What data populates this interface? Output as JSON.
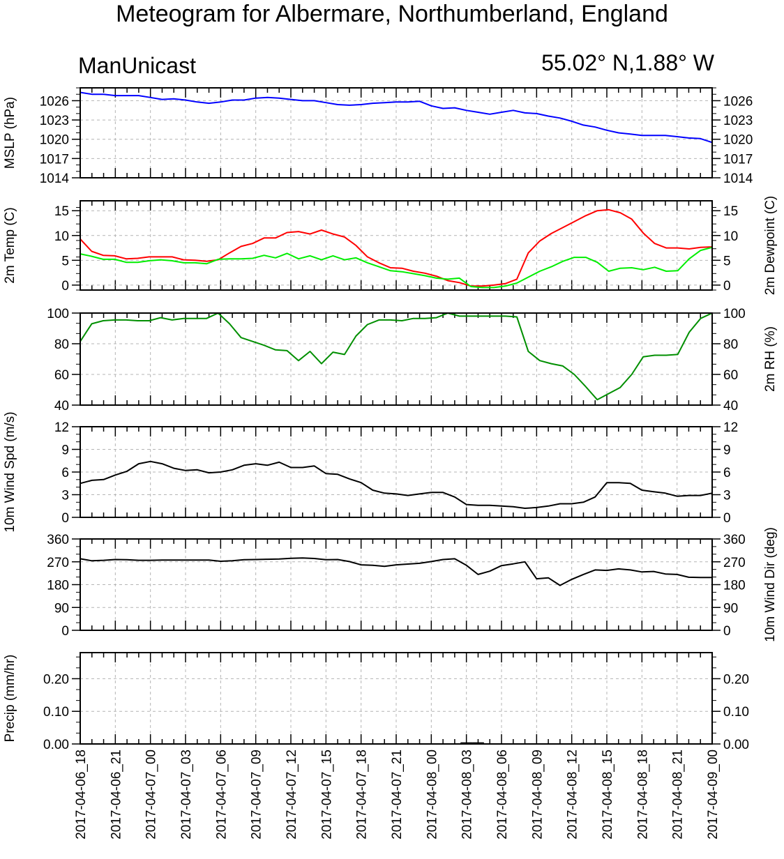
{
  "header": {
    "title": "Meteogram for Albermare, Northumberland, England",
    "model": "ManUnicast",
    "coordinates": "55.02° N,1.88° W"
  },
  "chart_data": [
    {
      "type": "line",
      "ylabel": "MSLP (hPa)",
      "ylabel_right": "",
      "ylim": [
        1014,
        1028
      ],
      "yticks": [
        1014,
        1017,
        1020,
        1023,
        1026
      ],
      "ytick_labels": [
        "1014",
        "1017",
        "1020",
        "1023",
        "1026"
      ],
      "series": [
        {
          "color": "#0000ff",
          "values": [
            1027.3,
            1027.0,
            1027.0,
            1026.8,
            1026.8,
            1026.8,
            1026.5,
            1026.2,
            1026.3,
            1026.1,
            1025.8,
            1025.6,
            1025.8,
            1026.1,
            1026.1,
            1026.4,
            1026.5,
            1026.4,
            1026.2,
            1026.0,
            1026.0,
            1025.7,
            1025.4,
            1025.3,
            1025.4,
            1025.6,
            1025.7,
            1025.8,
            1025.8,
            1025.9,
            1025.2,
            1024.8,
            1024.9,
            1024.5,
            1024.2,
            1023.9,
            1024.2,
            1024.5,
            1024.1,
            1024.0,
            1023.6,
            1023.3,
            1022.8,
            1022.2,
            1021.9,
            1021.4,
            1021.0,
            1020.8,
            1020.6,
            1020.6,
            1020.6,
            1020.4,
            1020.2,
            1020.1,
            1019.5
          ]
        }
      ]
    },
    {
      "type": "line",
      "ylabel": "2m Temp (C)",
      "ylabel_right": "2m Dewpoint (C)",
      "ylim": [
        -1,
        17
      ],
      "yticks": [
        0,
        5,
        10,
        15
      ],
      "ytick_labels": [
        "0",
        "5",
        "10",
        "15"
      ],
      "series": [
        {
          "name": "2m Temp (C)",
          "color": "#ff0000",
          "values": [
            9.3,
            6.8,
            6.0,
            5.9,
            5.3,
            5.4,
            5.7,
            5.7,
            5.7,
            5.1,
            5.0,
            4.8,
            5.1,
            6.5,
            7.8,
            8.4,
            9.5,
            9.5,
            10.6,
            10.8,
            10.3,
            11.1,
            10.3,
            9.7,
            8.0,
            5.7,
            4.5,
            3.5,
            3.4,
            2.8,
            2.4,
            1.8,
            0.9,
            0.5,
            -0.2,
            -0.2,
            0.0,
            0.3,
            1.2,
            6.5,
            8.9,
            10.4,
            11.6,
            12.8,
            14.0,
            15.0,
            15.2,
            14.6,
            13.3,
            10.5,
            8.4,
            7.5,
            7.5,
            7.3,
            7.6,
            7.7
          ]
        },
        {
          "name": "2m Dewpoint (C)",
          "color": "#00ee00",
          "values": [
            6.3,
            5.8,
            5.2,
            5.2,
            4.6,
            4.6,
            4.9,
            5.1,
            4.9,
            4.5,
            4.5,
            4.3,
            5.2,
            5.3,
            5.3,
            5.4,
            6.0,
            5.5,
            6.4,
            5.3,
            5.9,
            5.1,
            5.9,
            5.1,
            5.5,
            4.5,
            3.7,
            2.9,
            2.7,
            2.3,
            1.9,
            1.4,
            1.2,
            1.4,
            -0.3,
            -0.5,
            -0.5,
            -0.2,
            0.4,
            1.6,
            2.8,
            3.7,
            4.8,
            5.6,
            5.6,
            4.6,
            2.8,
            3.4,
            3.5,
            3.1,
            3.6,
            2.8,
            2.9,
            5.3,
            7.0,
            7.6
          ]
        }
      ]
    },
    {
      "type": "line",
      "ylabel": "",
      "ylabel_right": "2m RH (%)",
      "ylim": [
        40,
        100
      ],
      "yticks": [
        40,
        60,
        80,
        100
      ],
      "ytick_labels": [
        "40",
        "60",
        "80",
        "100"
      ],
      "series": [
        {
          "name": "2m RH (%)",
          "color": "#008f00",
          "values": [
            81.5,
            93.0,
            95.0,
            95.5,
            95.5,
            95.0,
            95.0,
            97.0,
            95.5,
            96.5,
            96.5,
            96.5,
            100.0,
            93.0,
            84.0,
            81.5,
            79.0,
            76.0,
            75.5,
            69.0,
            75.0,
            67.0,
            74.5,
            73.0,
            85.0,
            92.5,
            95.5,
            95.5,
            95.0,
            96.5,
            96.5,
            97.0,
            100.0,
            98.0,
            98.0,
            98.0,
            98.0,
            98.0,
            97.5,
            75.0,
            69.0,
            67.0,
            65.5,
            60.0,
            52.0,
            43.5,
            47.5,
            51.5,
            60.0,
            71.5,
            72.5,
            72.5,
            73.0,
            87.5,
            96.5,
            100.0
          ]
        }
      ]
    },
    {
      "type": "line",
      "ylabel": "10m Wind Spd (m/s)",
      "ylabel_right": "",
      "ylim": [
        0,
        12
      ],
      "yticks": [
        0,
        3,
        6,
        9,
        12
      ],
      "ytick_labels": [
        "0",
        "3",
        "6",
        "9",
        "12"
      ],
      "series": [
        {
          "color": "#000000",
          "values": [
            4.5,
            4.9,
            5.0,
            5.6,
            6.1,
            7.1,
            7.4,
            7.1,
            6.5,
            6.2,
            6.3,
            5.9,
            6.0,
            6.3,
            6.9,
            7.1,
            6.9,
            7.3,
            6.6,
            6.6,
            6.8,
            5.8,
            5.7,
            5.1,
            4.6,
            3.6,
            3.2,
            3.1,
            2.9,
            3.1,
            3.3,
            3.3,
            2.7,
            1.7,
            1.6,
            1.6,
            1.5,
            1.4,
            1.2,
            1.3,
            1.5,
            1.8,
            1.8,
            2.0,
            2.7,
            4.6,
            4.6,
            4.5,
            3.6,
            3.4,
            3.2,
            2.8,
            2.9,
            2.9,
            3.2
          ]
        }
      ]
    },
    {
      "type": "line",
      "ylabel": "",
      "ylabel_right": "10m Wind Dir (deg)",
      "ylim": [
        0,
        360
      ],
      "yticks": [
        0,
        90,
        180,
        270,
        360
      ],
      "ytick_labels": [
        "0",
        "90",
        "180",
        "270",
        "360"
      ],
      "series": [
        {
          "color": "#000000",
          "values": [
            282,
            274,
            276,
            279,
            278,
            276,
            276,
            277,
            277,
            277,
            277,
            277,
            272,
            274,
            278,
            279,
            280,
            281,
            284,
            285,
            283,
            278,
            279,
            271,
            258,
            256,
            252,
            258,
            261,
            264,
            271,
            279,
            282,
            256,
            220,
            233,
            255,
            262,
            270,
            203,
            207,
            177,
            201,
            220,
            238,
            236,
            242,
            238,
            230,
            232,
            222,
            220,
            209,
            208,
            208
          ]
        }
      ]
    },
    {
      "type": "bar",
      "ylabel": "Precip (mm/hr)",
      "ylabel_right": "",
      "ylim": [
        0,
        0.28
      ],
      "yticks": [
        0.0,
        0.1,
        0.2
      ],
      "ytick_labels": [
        "0.00",
        "0.10",
        "0.20"
      ],
      "series": [
        {
          "color": "#000000",
          "values": [
            0,
            0,
            0,
            0,
            0,
            0,
            0,
            0,
            0,
            0,
            0,
            0,
            0,
            0,
            0,
            0,
            0,
            0,
            0,
            0,
            0,
            0,
            0,
            0,
            0,
            0,
            0,
            0,
            0,
            0,
            0,
            0,
            0,
            0.005,
            0.005,
            0,
            0,
            0,
            0,
            0,
            0,
            0,
            0,
            0,
            0,
            0,
            0,
            0,
            0,
            0,
            0,
            0,
            0,
            0,
            0
          ]
        }
      ]
    }
  ],
  "x_axis": {
    "tick_labels": [
      "2017-04-06_18",
      "2017-04-06_21",
      "2017-04-07_00",
      "2017-04-07_03",
      "2017-04-07_06",
      "2017-04-07_09",
      "2017-04-07_12",
      "2017-04-07_15",
      "2017-04-07_18",
      "2017-04-07_21",
      "2017-04-08_00",
      "2017-04-08_03",
      "2017-04-08_06",
      "2017-04-08_09",
      "2017-04-08_12",
      "2017-04-08_15",
      "2017-04-08_18",
      "2017-04-08_21",
      "2017-04-09_00"
    ],
    "grid": "dashed"
  }
}
